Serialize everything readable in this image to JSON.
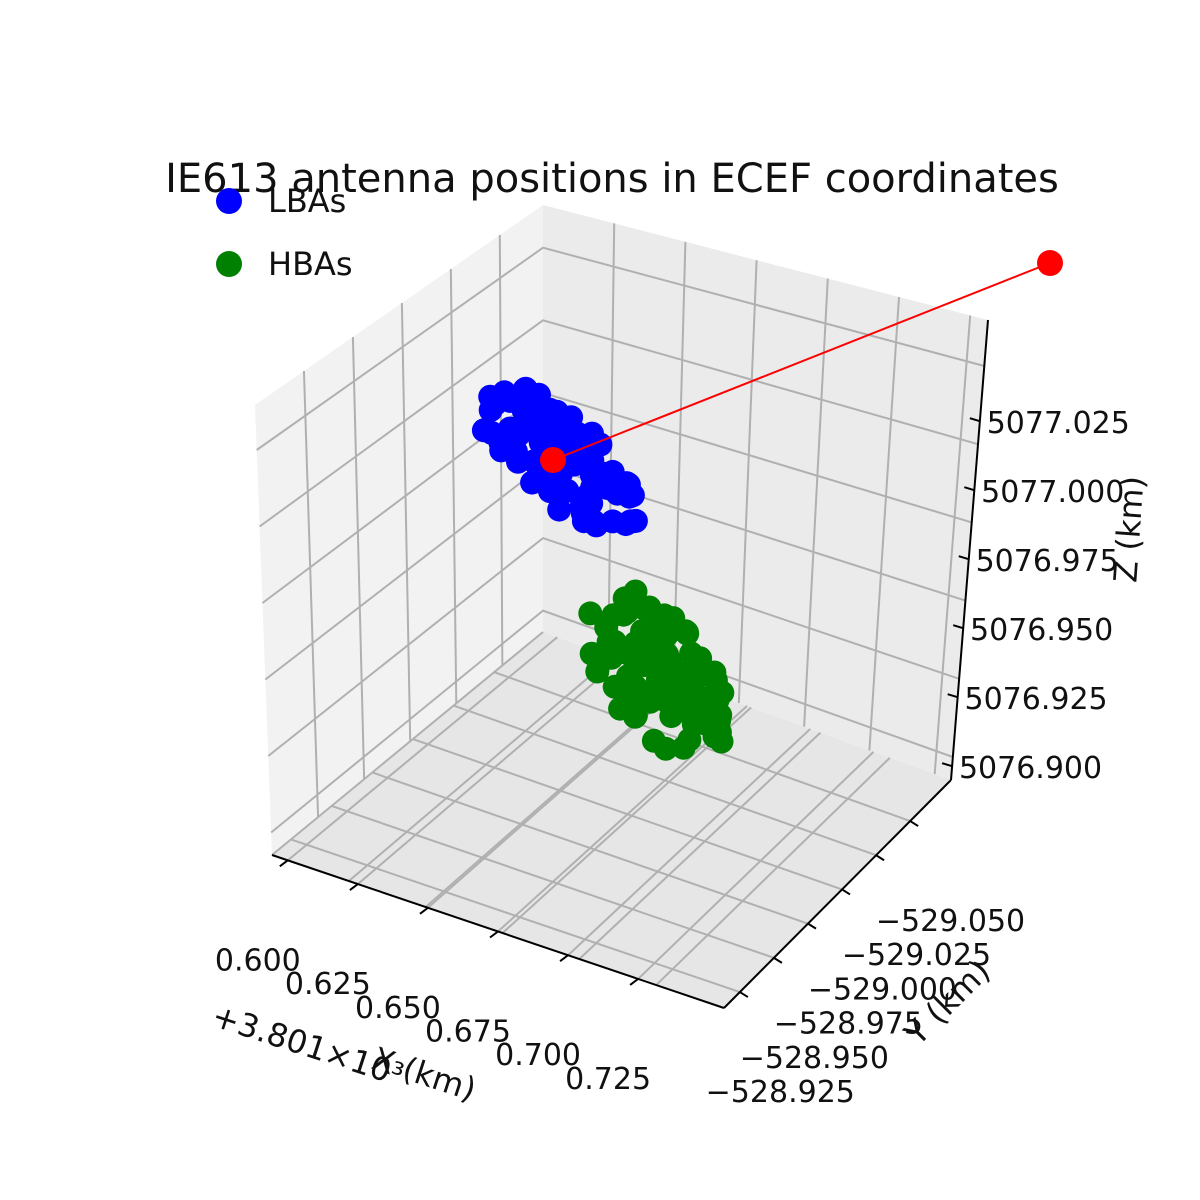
{
  "chart_data": {
    "type": "scatter",
    "title": "IE613 antenna positions in ECEF coordinates",
    "xlabel": "X (km)",
    "ylabel": "Y (km)",
    "zlabel": "Z (km)",
    "x_offset_label": "+3.801×10³",
    "x_ticks": [
      "0.600",
      "0.625",
      "0.650",
      "0.675",
      "0.700",
      "0.725"
    ],
    "y_ticks": [
      "−529.050",
      "−529.025",
      "−529.000",
      "−528.975",
      "−528.950",
      "−528.925"
    ],
    "z_ticks": [
      "5077.025",
      "5077.000",
      "5076.975",
      "5076.950",
      "5076.925",
      "5076.900"
    ],
    "legend": {
      "placement": "top-left",
      "entries": [
        {
          "label": "LBAs",
          "color": "#0000ff"
        },
        {
          "label": "HBAs",
          "color": "#008000"
        }
      ]
    },
    "series": [
      {
        "name": "LBAs",
        "color": "#0000ff",
        "center": [
          3801.658,
          -529.005,
          5077.006
        ],
        "count": 96
      },
      {
        "name": "HBAs",
        "color": "#008000",
        "center": [
          3801.7,
          -528.965,
          5076.935
        ],
        "count": 96
      },
      {
        "name": "",
        "color": "#ff0000",
        "type": "line",
        "points": [
          [
            3801.658,
            -529.005,
            5077.006
          ],
          [
            3801.755,
            -529.08,
            5077.065
          ]
        ]
      }
    ],
    "grid": true
  }
}
